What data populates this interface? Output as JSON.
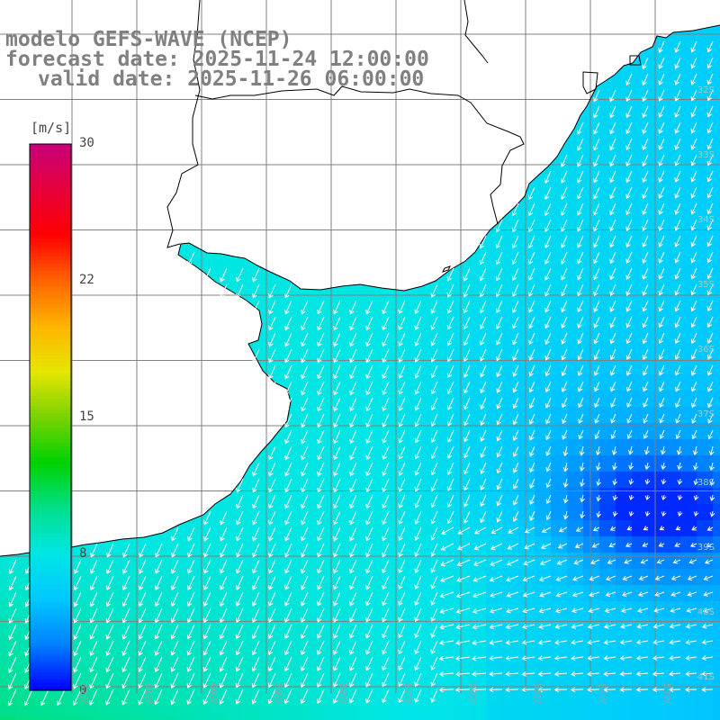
{
  "title": {
    "line1": "modelo GEFS-WAVE (NCEP)",
    "line2": "forecast date: 2025-11-24 12:00:00",
    "line3": "valid date: 2025-11-26 06:00:00"
  },
  "colorbar": {
    "unit": "[m/s]",
    "ticks": [
      "30",
      "22",
      "15",
      "8",
      "0"
    ],
    "tick_values": [
      30,
      22,
      15,
      8,
      0
    ],
    "range": [
      0,
      30
    ],
    "colors": [
      "#0000ff",
      "#0080ff",
      "#00c8ff",
      "#00e6e6",
      "#00e08a",
      "#00d200",
      "#7ad200",
      "#e6e600",
      "#ffb400",
      "#ff6400",
      "#ff0000",
      "#e6003c",
      "#c8007a"
    ]
  },
  "lat_labels": [
    "32S",
    "33S",
    "34S",
    "35S",
    "36S",
    "37S",
    "38S",
    "39S",
    "40S",
    "41S"
  ],
  "lon_labels": [
    "62W",
    "61W",
    "60W",
    "59W",
    "58W",
    "57W",
    "56W",
    "55W",
    "54W",
    "53W"
  ],
  "map": {
    "land_color": "#ffffff",
    "coast_color": "#000000",
    "grid_color": "#808080",
    "arrow_color": "#ffffff",
    "field_description": "10m wind speed with direction vectors",
    "min_region": "dark blue core ~1-3 m/s near 38.5S 53.5W",
    "max_region": "green 8-11 m/s near 40S 61W"
  }
}
